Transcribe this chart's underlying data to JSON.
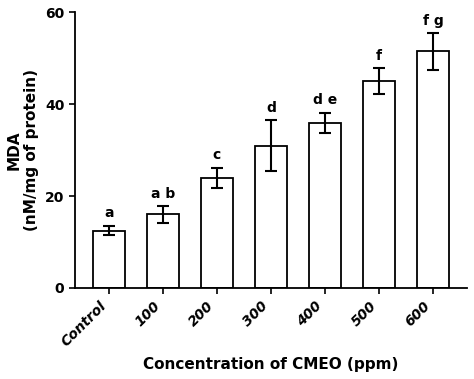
{
  "categories": [
    "Control",
    "100",
    "200",
    "300",
    "400",
    "500",
    "600"
  ],
  "values": [
    12.5,
    16.0,
    24.0,
    31.0,
    36.0,
    45.0,
    51.5
  ],
  "errors": [
    1.0,
    1.8,
    2.2,
    5.5,
    2.2,
    2.8,
    4.0
  ],
  "letters": [
    "a",
    "a b",
    "c",
    "d",
    "d e",
    "f",
    "f g"
  ],
  "letter_offsets": [
    0.0,
    0.0,
    0.0,
    0.0,
    0.0,
    0.0,
    0.0
  ],
  "bar_color": "#ffffff",
  "edge_color": "#000000",
  "ylabel_line1": "MDA",
  "ylabel_line2": "(nM/mg of protein)",
  "xlabel": "Concentration of CMEO (ppm)",
  "ylim": [
    0,
    60
  ],
  "yticks": [
    0,
    20,
    40,
    60
  ],
  "figsize": [
    4.74,
    3.79
  ],
  "dpi": 100
}
